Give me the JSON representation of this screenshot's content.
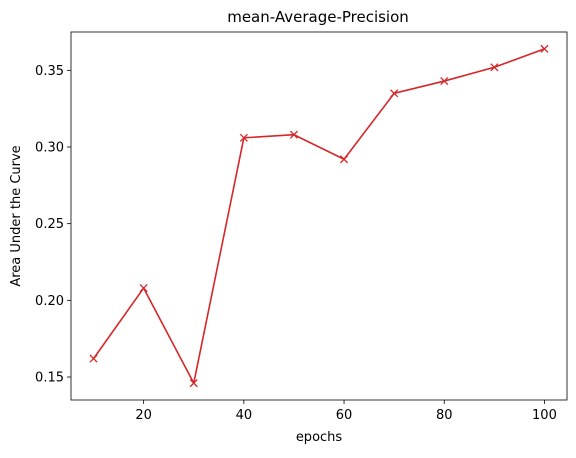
{
  "chart_data": {
    "type": "line",
    "title": "mean-Average-Precision",
    "xlabel": "epochs",
    "ylabel": "Area Under the Curve",
    "xlim": [
      5.5,
      104.5
    ],
    "ylim": [
      0.135,
      0.375
    ],
    "xticks": [
      20,
      40,
      60,
      80,
      100
    ],
    "xtick_labels": [
      "20",
      "40",
      "60",
      "80",
      "100"
    ],
    "yticks": [
      0.15,
      0.2,
      0.25,
      0.3,
      0.35
    ],
    "ytick_labels": [
      "0.15",
      "0.20",
      "0.25",
      "0.30",
      "0.35"
    ],
    "grid": false,
    "marker": "x",
    "color": "#d62728",
    "series": [
      {
        "x": [
          10,
          20,
          30,
          40,
          50,
          60,
          70,
          80,
          90,
          100
        ],
        "y": [
          0.162,
          0.208,
          0.146,
          0.306,
          0.308,
          0.292,
          0.335,
          0.343,
          0.352,
          0.364
        ]
      }
    ]
  }
}
